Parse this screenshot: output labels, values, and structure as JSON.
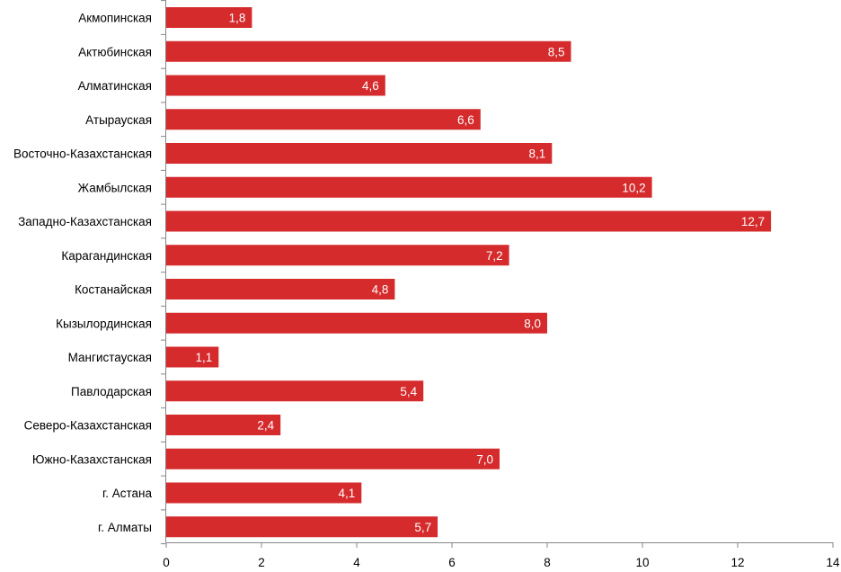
{
  "chart_data": {
    "type": "bar",
    "orientation": "horizontal",
    "categories": [
      "Акмопинская",
      "Актюбинская",
      "Алматинская",
      "Атырауская",
      "Восточно-Казахстанская",
      "Жамбылская",
      "Западно-Казахстанская",
      "Карагандинская",
      "Костанайская",
      "Кызылординская",
      "Мангистауская",
      "Павлодарская",
      "Северо-Казахстанская",
      "Южно-Казахстанская",
      "г. Астана",
      "г. Алматы"
    ],
    "values": [
      1.8,
      8.5,
      4.6,
      6.6,
      8.1,
      10.2,
      12.7,
      7.2,
      4.8,
      8.0,
      1.1,
      5.4,
      2.4,
      7.0,
      4.1,
      5.7
    ],
    "data_labels": [
      "1,8",
      "8,5",
      "4,6",
      "6,6",
      "8,1",
      "10,2",
      "12,7",
      "7,2",
      "4,8",
      "8,0",
      "1,1",
      "5,4",
      "2,4",
      "7,0",
      "4,1",
      "5,7"
    ],
    "x_ticks": [
      "0",
      "2",
      "4",
      "6",
      "8",
      "10",
      "12",
      "14"
    ],
    "xlim": [
      0,
      14
    ],
    "bar_color": "#D52B2D",
    "grid": false,
    "legend": "none"
  }
}
